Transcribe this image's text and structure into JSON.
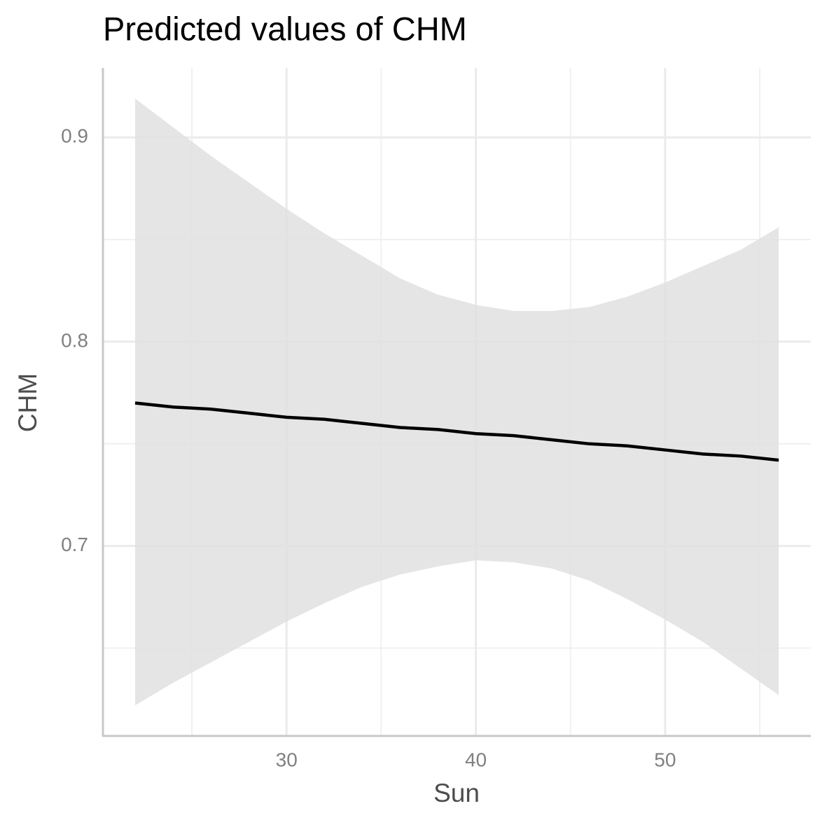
{
  "chart_data": {
    "type": "line",
    "title": "Predicted values of CHM",
    "x_label": "Sun",
    "y_label": "CHM",
    "x": [
      22,
      24,
      26,
      28,
      30,
      32,
      34,
      36,
      38,
      40,
      42,
      44,
      46,
      48,
      50,
      52,
      54,
      56
    ],
    "series": [
      {
        "color": "#000000",
        "values": [
          0.77,
          0.768,
          0.767,
          0.765,
          0.763,
          0.762,
          0.76,
          0.758,
          0.757,
          0.755,
          0.754,
          0.752,
          0.75,
          0.749,
          0.747,
          0.745,
          0.744,
          0.742
        ]
      }
    ],
    "ci_low": [
      0.622,
      0.633,
      0.643,
      0.653,
      0.663,
      0.672,
      0.68,
      0.686,
      0.69,
      0.693,
      0.692,
      0.689,
      0.683,
      0.674,
      0.664,
      0.653,
      0.64,
      0.627
    ],
    "ci_high": [
      0.919,
      0.905,
      0.891,
      0.878,
      0.865,
      0.853,
      0.842,
      0.831,
      0.823,
      0.818,
      0.815,
      0.815,
      0.817,
      0.822,
      0.829,
      0.837,
      0.845,
      0.856
    ],
    "ci_color": "#e0e0e0",
    "xlim": [
      20.3,
      57.7
    ],
    "ylim": [
      0.607,
      0.934
    ],
    "xticks": [
      30,
      40,
      50
    ],
    "yticks": [
      0.7,
      0.8,
      0.9
    ],
    "xminor": [
      25,
      35,
      45,
      55
    ],
    "yminor": [
      0.65,
      0.75,
      0.85
    ],
    "grid": true
  }
}
